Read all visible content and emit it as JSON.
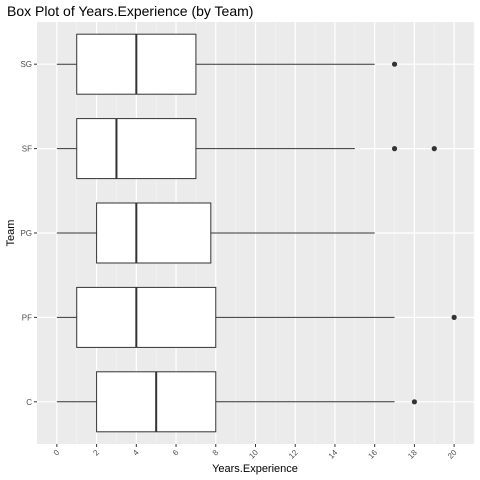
{
  "chart_data": {
    "type": "boxplot",
    "orientation": "horizontal",
    "title": "Box Plot of Years.Experience (by Team)",
    "xlabel": "Years.Experience",
    "ylabel": "Team",
    "xlim": [
      -1,
      21
    ],
    "x_ticks": [
      "0",
      "2",
      "4",
      "6",
      "8",
      "10",
      "12",
      "14",
      "16",
      "18",
      "20"
    ],
    "grid": true,
    "categories": [
      "SG",
      "SF",
      "PG",
      "PF",
      "C"
    ],
    "boxes": [
      {
        "team": "SG",
        "whisker_low": 0,
        "q1": 1,
        "median": 4,
        "q3": 7,
        "whisker_high": 16,
        "outliers": [
          17
        ]
      },
      {
        "team": "SF",
        "whisker_low": 0,
        "q1": 1,
        "median": 3,
        "q3": 7,
        "whisker_high": 15,
        "outliers": [
          17,
          19
        ]
      },
      {
        "team": "PG",
        "whisker_low": 0,
        "q1": 2,
        "median": 4,
        "q3": 7.75,
        "whisker_high": 16,
        "outliers": []
      },
      {
        "team": "PF",
        "whisker_low": 0,
        "q1": 1,
        "median": 4,
        "q3": 8,
        "whisker_high": 17,
        "outliers": [
          20
        ]
      },
      {
        "team": "C",
        "whisker_low": 0,
        "q1": 2,
        "median": 5,
        "q3": 8,
        "whisker_high": 17,
        "outliers": [
          18
        ]
      }
    ],
    "colors": {
      "panel": "#ebebeb",
      "grid_major": "#ffffff",
      "grid_minor": "#f5f5f5",
      "box_fill": "#ffffff",
      "stroke": "#333333"
    }
  }
}
